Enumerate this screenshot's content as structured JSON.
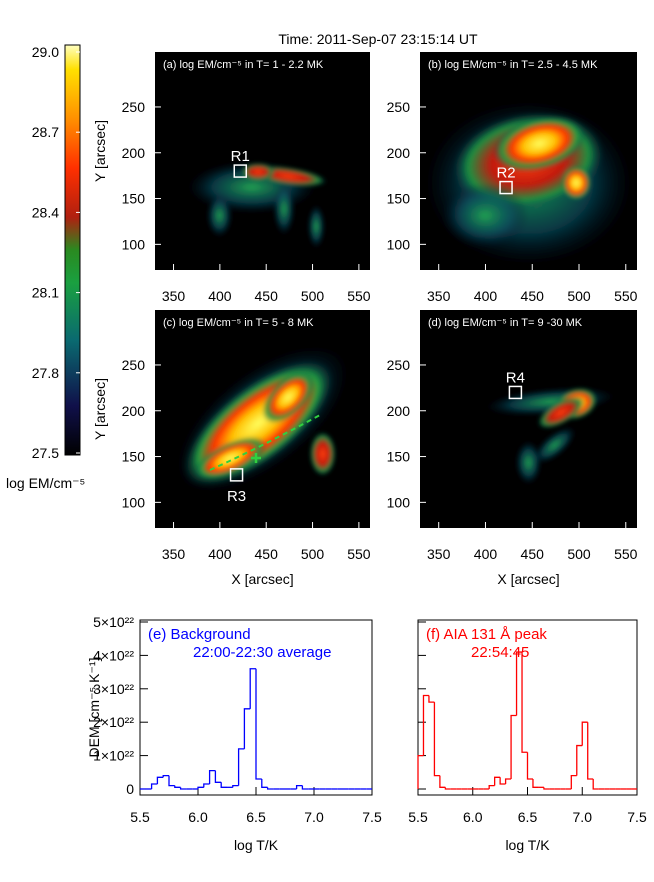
{
  "title": "Time: 2011-Sep-07 23:15:14 UT",
  "chart_data": [
    {
      "type": "colorbar",
      "label": "log EM/cm⁻⁵",
      "ylim": [
        27.5,
        29.0
      ],
      "yticks": [
        {
          "value": 27.5,
          "label": "27.5"
        },
        {
          "value": 27.8,
          "label": "27.8"
        },
        {
          "value": 28.1,
          "label": "28.1"
        },
        {
          "value": 28.4,
          "label": "28.4"
        },
        {
          "value": 28.7,
          "label": "28.7"
        },
        {
          "value": 29.0,
          "label": "29.0"
        }
      ]
    },
    {
      "type": "image",
      "label": "(a) log EM/cm⁻⁵ in T= 1 - 2.2 MK",
      "ylabel": "Y [arcsec]",
      "xlim": [
        330,
        562
      ],
      "xticks": [
        350,
        400,
        450,
        500,
        550
      ],
      "ylim": [
        72,
        310
      ],
      "yticks": [
        100,
        150,
        200,
        250
      ],
      "boxes": [
        {
          "label": "R1",
          "x": 422,
          "y": 180
        }
      ]
    },
    {
      "type": "image",
      "label": "(b) log EM/cm⁻⁵ in T= 2.5 - 4.5 MK",
      "xlim": [
        330,
        562
      ],
      "xticks": [
        350,
        400,
        450,
        500,
        550
      ],
      "ylim": [
        72,
        310
      ],
      "yticks": [
        100,
        150,
        200,
        250
      ],
      "boxes": [
        {
          "label": "R2",
          "x": 422,
          "y": 162
        }
      ]
    },
    {
      "type": "image",
      "label": "(c) log EM/cm⁻⁵ in T= 5 - 8 MK",
      "ylabel": "Y [arcsec]",
      "xlabel": "X [arcsec]",
      "xlim": [
        330,
        562
      ],
      "xticks": [
        350,
        400,
        450,
        500,
        550
      ],
      "ylim": [
        72,
        310
      ],
      "yticks": [
        100,
        150,
        200,
        250
      ],
      "boxes": [
        {
          "label": "R3",
          "x": 418,
          "y": 130
        }
      ]
    },
    {
      "type": "image",
      "label": "(d) log EM/cm⁻⁵ in T= 9 -30 MK",
      "xlabel": "X [arcsec]",
      "xlim": [
        330,
        562
      ],
      "xticks": [
        350,
        400,
        450,
        500,
        550
      ],
      "ylim": [
        72,
        310
      ],
      "yticks": [
        100,
        150,
        200,
        250
      ],
      "boxes": [
        {
          "label": "R4",
          "x": 432,
          "y": 220
        }
      ]
    },
    {
      "type": "histogram",
      "color": "#0000ff",
      "ylabel": "DEM [cm⁻⁵ K⁻¹]",
      "xlabel": "log T/K",
      "annotations": [
        "(e) Background",
        "22:00-22:30 average"
      ],
      "xlim": [
        5.5,
        7.5
      ],
      "xticks": [
        5.5,
        {
          "value": 6,
          "label": "6.0"
        },
        6.5,
        {
          "value": 7,
          "label": "7.0"
        },
        7.5
      ],
      "ylim": [
        -1.8e+21,
        5.06e+22
      ],
      "yticks": [
        0,
        {
          "value": 1e+22,
          "label": "1×10²²"
        },
        {
          "value": 2e+22,
          "label": "2×10²²"
        },
        {
          "value": 3e+22,
          "label": "3×10²²"
        },
        {
          "value": 4e+22,
          "label": "4×10²²"
        },
        {
          "value": 5e+22,
          "label": "5×10²²"
        }
      ],
      "bins": [
        5.5,
        5.55,
        5.6,
        5.65,
        5.7,
        5.75,
        5.8,
        5.85,
        5.9,
        5.95,
        6.0,
        6.05,
        6.1,
        6.15,
        6.2,
        6.25,
        6.3,
        6.35,
        6.4,
        6.45,
        6.5,
        6.55,
        6.6,
        6.65,
        6.7,
        6.75,
        6.8,
        6.85,
        6.9,
        6.95,
        7.0,
        7.05,
        7.1,
        7.15,
        7.2,
        7.25,
        7.3,
        7.35,
        7.4,
        7.45,
        7.5
      ],
      "counts": [
        0,
        0,
        1.5e+21,
        3.5e+21,
        4e+21,
        1e+21,
        5e+20,
        0,
        0,
        0,
        5e+20,
        1.5e+21,
        5.5e+21,
        2e+21,
        5e+20,
        5e+20,
        1e+21,
        1.2e+22,
        2.4e+22,
        3.6e+22,
        3e+21,
        5e+20,
        0,
        0,
        0,
        0,
        0,
        1e+21,
        0,
        0,
        0,
        0,
        0,
        0,
        0,
        0,
        0,
        0,
        0,
        0
      ]
    },
    {
      "type": "histogram",
      "color": "#ff0000",
      "xlabel": "log T/K",
      "annotations": [
        "(f) AIA 131 Å peak",
        "22:54:45"
      ],
      "xlim": [
        5.5,
        7.5
      ],
      "xticks": [
        5.5,
        {
          "value": 6,
          "label": "6.0"
        },
        6.5,
        {
          "value": 7,
          "label": "7.0"
        },
        7.5
      ],
      "ylim": [
        -1.8e+21,
        5.06e+22
      ],
      "yticks": [
        0,
        1e+22,
        2e+22,
        3e+22,
        4e+22,
        5e+22
      ],
      "bins": [
        5.5,
        5.55,
        5.6,
        5.65,
        5.7,
        5.75,
        5.8,
        5.85,
        5.9,
        5.95,
        6.0,
        6.05,
        6.1,
        6.15,
        6.2,
        6.25,
        6.3,
        6.35,
        6.4,
        6.45,
        6.5,
        6.55,
        6.6,
        6.65,
        6.7,
        6.75,
        6.8,
        6.85,
        6.9,
        6.95,
        7.0,
        7.05,
        7.1,
        7.15,
        7.2,
        7.25,
        7.3,
        7.35,
        7.4,
        7.45,
        7.5
      ],
      "counts": [
        1e+22,
        2.8e+22,
        2.6e+22,
        4e+21,
        5e+20,
        0,
        0,
        0,
        0,
        0,
        0,
        0,
        0,
        1e+21,
        3.5e+21,
        1.5e+21,
        3e+21,
        2.2e+22,
        4.1e+22,
        1.1e+22,
        3e+21,
        5e+20,
        5e+20,
        0,
        0,
        0,
        0,
        0,
        4e+21,
        1.3e+22,
        2e+22,
        3e+21,
        0,
        0,
        0,
        0,
        0,
        0,
        0,
        0
      ]
    }
  ]
}
